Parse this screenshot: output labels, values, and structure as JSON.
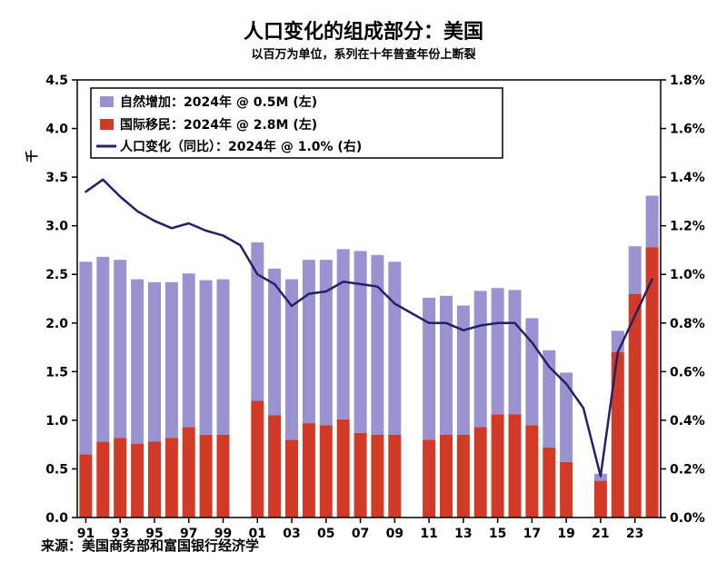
{
  "title": "人口变化的组成部分：美国",
  "subtitle": "以百万为单位，系列在十年普查年份上断裂",
  "source": "来源：美国商务部和富国银行经济学",
  "left_axis": {
    "unit_label": "千",
    "ticks": [
      "0.0",
      "0.5",
      "1.0",
      "1.5",
      "2.0",
      "2.5",
      "3.0",
      "3.5",
      "4.0",
      "4.5"
    ]
  },
  "right_axis": {
    "ticks": [
      "0.0%",
      "0.2%",
      "0.4%",
      "0.6%",
      "0.8%",
      "1.0%",
      "1.2%",
      "1.4%",
      "1.6%",
      "1.8%"
    ]
  },
  "x_axis": {
    "ticks": [
      "91",
      "93",
      "95",
      "97",
      "99",
      "01",
      "03",
      "05",
      "07",
      "09",
      "11",
      "13",
      "15",
      "17",
      "19",
      "21",
      "23"
    ]
  },
  "legend": [
    {
      "label": "自然增加：2024年 @ 0.5M (左)",
      "color": "#9b93d1",
      "type": "bar"
    },
    {
      "label": "国际移民：2024年 @ 2.8M (左)",
      "color": "#d13a26",
      "type": "bar"
    },
    {
      "label": "人口变化（同比）：2024年 @ 1.0% (右)",
      "color": "#232268",
      "type": "line"
    }
  ],
  "colors": {
    "natural_increase": "#9b93d1",
    "international_migration": "#d13a26",
    "population_change_line": "#232268",
    "axis": "#000000",
    "background": "#ffffff"
  },
  "chart_data": {
    "type": "bar",
    "stacked": true,
    "note": "stacked bars on left axis (millions), line on right axis (percent); bars break at decennial census years",
    "x": [
      1991,
      1992,
      1993,
      1994,
      1995,
      1996,
      1997,
      1998,
      1999,
      2000,
      2001,
      2002,
      2003,
      2004,
      2005,
      2006,
      2007,
      2008,
      2009,
      2010,
      2011,
      2012,
      2013,
      2014,
      2015,
      2016,
      2017,
      2018,
      2019,
      2020,
      2021,
      2022,
      2023,
      2024
    ],
    "census_break_years": [
      2000,
      2010,
      2020
    ],
    "left_ylim": [
      0,
      4.5
    ],
    "right_ylim": [
      0,
      1.8
    ],
    "series": [
      {
        "name": "国际移民",
        "type": "bar",
        "axis": "left",
        "color": "#d13a26",
        "values": [
          0.65,
          0.78,
          0.82,
          0.76,
          0.78,
          0.82,
          0.93,
          0.85,
          0.85,
          null,
          1.2,
          1.05,
          0.8,
          0.97,
          0.95,
          1.01,
          0.87,
          0.85,
          0.85,
          null,
          0.8,
          0.85,
          0.85,
          0.93,
          1.06,
          1.06,
          0.95,
          0.72,
          0.57,
          null,
          0.38,
          1.7,
          2.3,
          2.78
        ]
      },
      {
        "name": "自然增加",
        "type": "bar",
        "axis": "left",
        "color": "#9b93d1",
        "values": [
          1.98,
          1.9,
          1.83,
          1.69,
          1.64,
          1.6,
          1.58,
          1.59,
          1.6,
          null,
          1.63,
          1.51,
          1.65,
          1.68,
          1.7,
          1.75,
          1.87,
          1.85,
          1.78,
          null,
          1.46,
          1.43,
          1.33,
          1.4,
          1.3,
          1.28,
          1.1,
          1.0,
          0.92,
          null,
          0.07,
          0.22,
          0.49,
          0.53
        ]
      },
      {
        "name": "人口变化（同比）",
        "type": "line",
        "axis": "right",
        "color": "#232268",
        "values": [
          1.34,
          1.39,
          1.32,
          1.26,
          1.22,
          1.19,
          1.21,
          1.18,
          1.16,
          1.12,
          1.0,
          0.96,
          0.87,
          0.92,
          0.93,
          0.97,
          0.96,
          0.95,
          0.88,
          0.84,
          0.8,
          0.8,
          0.77,
          0.79,
          0.8,
          0.8,
          0.72,
          0.62,
          0.55,
          0.45,
          0.17,
          0.68,
          0.83,
          0.98
        ]
      }
    ]
  }
}
